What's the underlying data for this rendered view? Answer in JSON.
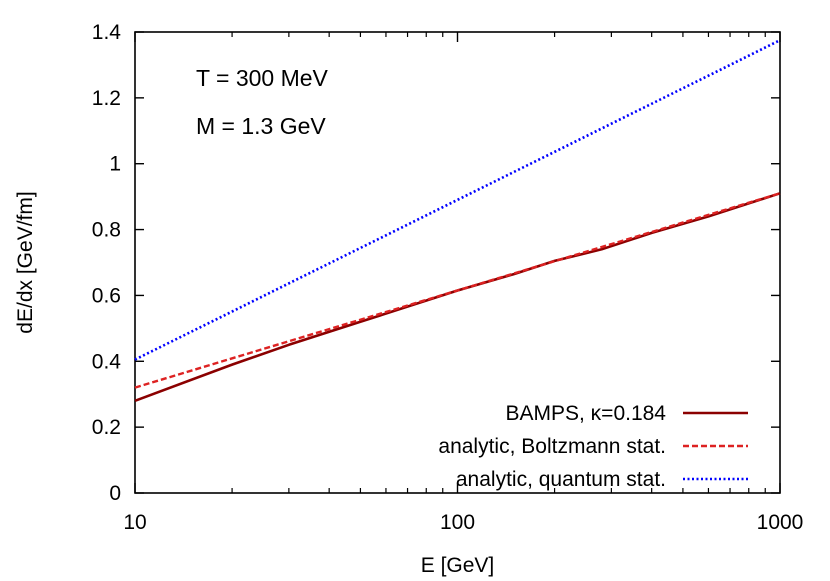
{
  "chart_data": {
    "type": "line",
    "xlabel": "E [GeV]",
    "ylabel": "dE/dx [GeV/fm]",
    "xscale": "log",
    "xlim": [
      10,
      1000
    ],
    "ylim": [
      0,
      1.4
    ],
    "grid": false,
    "legend_position": "bottom-right",
    "x_ticks": [
      "10",
      "100",
      "1000"
    ],
    "y_ticks": [
      "0",
      "0.2",
      "0.4",
      "0.6",
      "0.8",
      "1",
      "1.2",
      "1.4"
    ],
    "annotations": [
      "T = 300 MeV",
      "M = 1.3 GeV"
    ],
    "series": [
      {
        "name": "BAMPS, κ=0.184",
        "color": "#8b0000",
        "style": "solid",
        "x": [
          10,
          20,
          30,
          50,
          100,
          150,
          200,
          280,
          400,
          600,
          1000
        ],
        "y": [
          0.28,
          0.39,
          0.45,
          0.52,
          0.615,
          0.665,
          0.705,
          0.74,
          0.79,
          0.84,
          0.91
        ]
      },
      {
        "name": "analytic, Boltzmann stat.",
        "color": "#dd2222",
        "style": "dashed",
        "x": [
          10,
          1000
        ],
        "y": [
          0.32,
          0.91
        ]
      },
      {
        "name": "analytic, quantum stat.",
        "color": "#0000ff",
        "style": "dotted",
        "x": [
          10,
          1000
        ],
        "y": [
          0.405,
          1.375
        ]
      }
    ]
  }
}
